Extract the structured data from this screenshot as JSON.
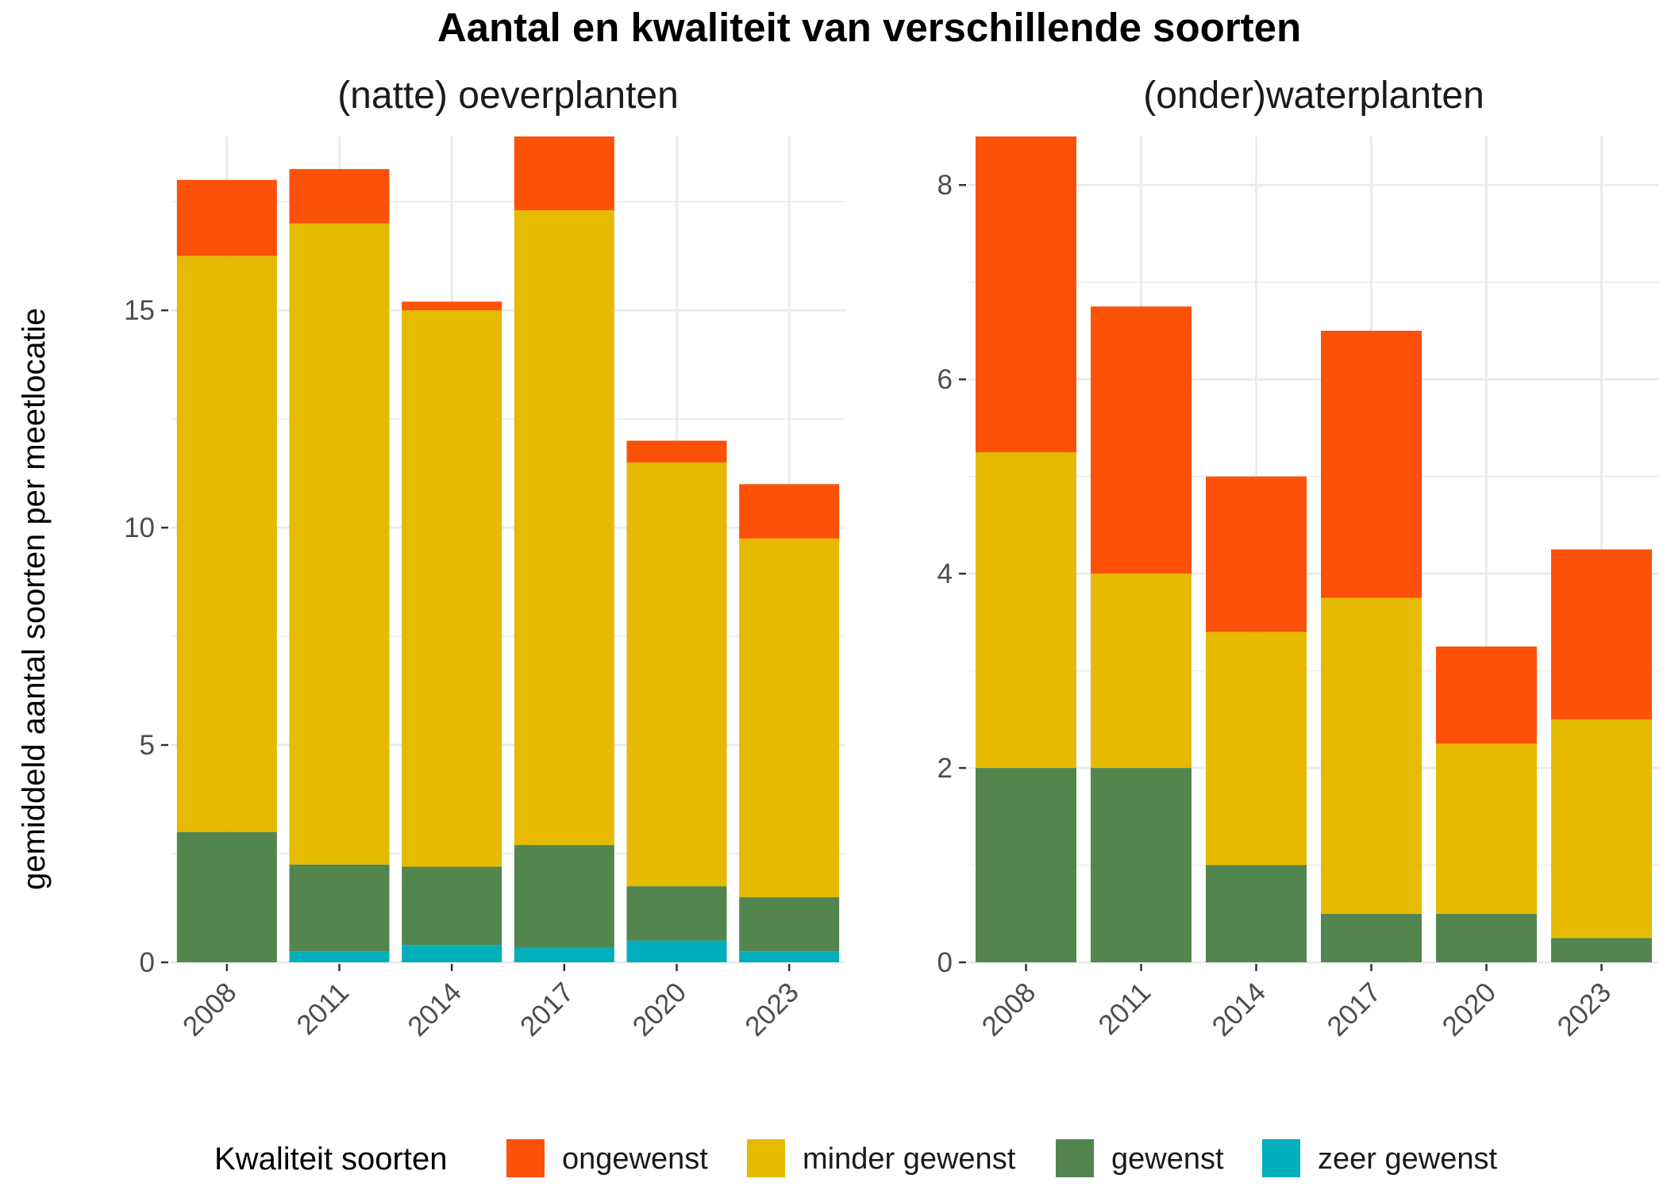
{
  "chart_data": {
    "type": "bar",
    "title": "Aantal en kwaliteit van verschillende soorten",
    "ylabel": "gemiddeld aantal soorten per meetlocatie",
    "xlabel": "",
    "stacked": true,
    "grid": true,
    "legend": {
      "title": "Kwaliteit soorten",
      "position": "bottom",
      "entries": [
        {
          "name": "ongewenst",
          "color": "#FC5108"
        },
        {
          "name": "minder gewenst",
          "color": "#E6BA00"
        },
        {
          "name": "gewenst",
          "color": "#53864E"
        },
        {
          "name": "zeer gewenst",
          "color": "#00AFBB"
        }
      ]
    },
    "panels": [
      {
        "title": "(natte) oeverplanten",
        "categories": [
          "2008",
          "2011",
          "2014",
          "2017",
          "2020",
          "2023"
        ],
        "ylim": [
          0,
          19
        ],
        "yticks": [
          0,
          5,
          10,
          15
        ],
        "series": [
          {
            "name": "zeer gewenst",
            "color": "#00AFBB",
            "values": [
              0,
              0.25,
              0.4,
              0.33,
              0.5,
              0.25
            ]
          },
          {
            "name": "gewenst",
            "color": "#53864E",
            "values": [
              3.0,
              2.0,
              1.8,
              2.37,
              1.25,
              1.25
            ]
          },
          {
            "name": "minder gewenst",
            "color": "#E6BA00",
            "values": [
              13.25,
              14.75,
              12.8,
              14.6,
              9.75,
              8.25
            ]
          },
          {
            "name": "ongewenst",
            "color": "#FC5108",
            "values": [
              1.75,
              1.25,
              0.2,
              1.7,
              0.5,
              1.25
            ]
          }
        ]
      },
      {
        "title": "(onder)waterplanten",
        "categories": [
          "2008",
          "2011",
          "2014",
          "2017",
          "2020",
          "2023"
        ],
        "ylim": [
          0,
          8.5
        ],
        "yticks": [
          0,
          2,
          4,
          6,
          8
        ],
        "series": [
          {
            "name": "zeer gewenst",
            "color": "#00AFBB",
            "values": [
              0,
              0,
              0,
              0,
              0,
              0
            ]
          },
          {
            "name": "gewenst",
            "color": "#53864E",
            "values": [
              2.0,
              2.0,
              1.0,
              0.5,
              0.5,
              0.25
            ]
          },
          {
            "name": "minder gewenst",
            "color": "#E6BA00",
            "values": [
              3.25,
              2.0,
              2.4,
              3.25,
              1.75,
              2.25
            ]
          },
          {
            "name": "ongewenst",
            "color": "#FC5108",
            "values": [
              3.25,
              2.75,
              1.6,
              2.75,
              1.0,
              1.75
            ]
          }
        ]
      }
    ]
  }
}
